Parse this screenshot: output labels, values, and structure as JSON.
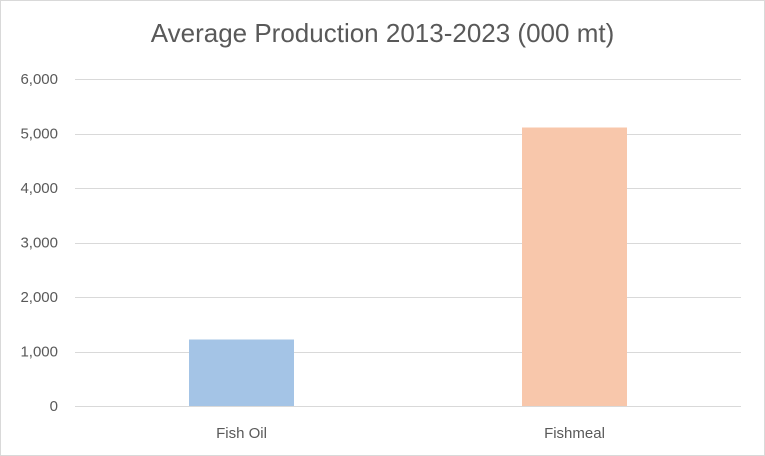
{
  "chart_data": {
    "type": "bar",
    "title": "Average Production 2013-2023 (000 mt)",
    "categories": [
      "Fish Oil",
      "Fishmeal"
    ],
    "series": [
      {
        "values": [
          1220,
          5110
        ],
        "colors": [
          "#a4c4e6",
          "#f8c7ab"
        ]
      }
    ],
    "ylim": [
      0,
      6000
    ],
    "y_ticks": [
      0,
      1000,
      2000,
      3000,
      4000,
      5000,
      6000
    ],
    "y_tick_labels": [
      "0",
      "1,000",
      "2,000",
      "3,000",
      "4,000",
      "5,000",
      "6,000"
    ],
    "xlabel": "",
    "ylabel": "",
    "grid": true,
    "gridline_color": "#d9d9d9",
    "legend": "none"
  }
}
